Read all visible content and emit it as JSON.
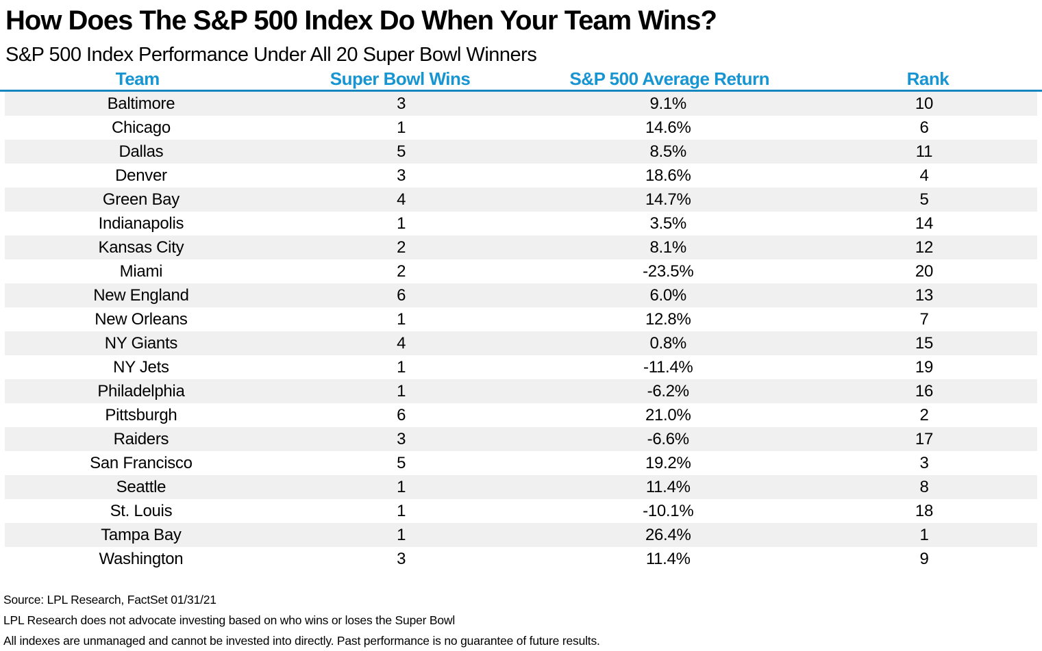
{
  "title": "How Does The S&P 500 Index Do When Your Team Wins?",
  "subtitle": "S&P 500 Index Performance Under All 20 Super Bowl Winners",
  "colors": {
    "header_text_blue": "#1795D2",
    "header_rule_blue": "#1488BE",
    "stripe_gray": "#F0F0F0",
    "text_black": "#000000"
  },
  "table": {
    "headers": [
      "Team",
      "Super Bowl Wins",
      "S&P 500 Average Return",
      "Rank"
    ],
    "rows": [
      [
        "Baltimore",
        "3",
        "9.1%",
        "10"
      ],
      [
        "Chicago",
        "1",
        "14.6%",
        "6"
      ],
      [
        "Dallas",
        "5",
        "8.5%",
        "11"
      ],
      [
        "Denver",
        "3",
        "18.6%",
        "4"
      ],
      [
        "Green Bay",
        "4",
        "14.7%",
        "5"
      ],
      [
        "Indianapolis",
        "1",
        "3.5%",
        "14"
      ],
      [
        "Kansas City",
        "2",
        "8.1%",
        "12"
      ],
      [
        "Miami",
        "2",
        "-23.5%",
        "20"
      ],
      [
        "New England",
        "6",
        "6.0%",
        "13"
      ],
      [
        "New Orleans",
        "1",
        "12.8%",
        "7"
      ],
      [
        "NY Giants",
        "4",
        "0.8%",
        "15"
      ],
      [
        "NY Jets",
        "1",
        "-11.4%",
        "19"
      ],
      [
        "Philadelphia",
        "1",
        "-6.2%",
        "16"
      ],
      [
        "Pittsburgh",
        "6",
        "21.0%",
        "2"
      ],
      [
        "Raiders",
        "3",
        "-6.6%",
        "17"
      ],
      [
        "San Francisco",
        "5",
        "19.2%",
        "3"
      ],
      [
        "Seattle",
        "1",
        "11.4%",
        "8"
      ],
      [
        "St. Louis",
        "1",
        "-10.1%",
        "18"
      ],
      [
        "Tampa Bay",
        "1",
        "26.4%",
        "1"
      ],
      [
        "Washington",
        "3",
        "11.4%",
        "9"
      ]
    ]
  },
  "chart_data": {
    "type": "table",
    "title": "How Does The S&P 500 Index Do When Your Team Wins?",
    "subtitle": "S&P 500 Index Performance Under All 20 Super Bowl Winners",
    "columns": [
      "Team",
      "Super Bowl Wins",
      "S&P 500 Average Return",
      "Rank"
    ],
    "rows": [
      {
        "team": "Baltimore",
        "super_bowl_wins": 3,
        "sp500_avg_return_pct": 9.1,
        "rank": 10
      },
      {
        "team": "Chicago",
        "super_bowl_wins": 1,
        "sp500_avg_return_pct": 14.6,
        "rank": 6
      },
      {
        "team": "Dallas",
        "super_bowl_wins": 5,
        "sp500_avg_return_pct": 8.5,
        "rank": 11
      },
      {
        "team": "Denver",
        "super_bowl_wins": 3,
        "sp500_avg_return_pct": 18.6,
        "rank": 4
      },
      {
        "team": "Green Bay",
        "super_bowl_wins": 4,
        "sp500_avg_return_pct": 14.7,
        "rank": 5
      },
      {
        "team": "Indianapolis",
        "super_bowl_wins": 1,
        "sp500_avg_return_pct": 3.5,
        "rank": 14
      },
      {
        "team": "Kansas City",
        "super_bowl_wins": 2,
        "sp500_avg_return_pct": 8.1,
        "rank": 12
      },
      {
        "team": "Miami",
        "super_bowl_wins": 2,
        "sp500_avg_return_pct": -23.5,
        "rank": 20
      },
      {
        "team": "New England",
        "super_bowl_wins": 6,
        "sp500_avg_return_pct": 6.0,
        "rank": 13
      },
      {
        "team": "New Orleans",
        "super_bowl_wins": 1,
        "sp500_avg_return_pct": 12.8,
        "rank": 7
      },
      {
        "team": "NY Giants",
        "super_bowl_wins": 4,
        "sp500_avg_return_pct": 0.8,
        "rank": 15
      },
      {
        "team": "NY Jets",
        "super_bowl_wins": 1,
        "sp500_avg_return_pct": -11.4,
        "rank": 19
      },
      {
        "team": "Philadelphia",
        "super_bowl_wins": 1,
        "sp500_avg_return_pct": -6.2,
        "rank": 16
      },
      {
        "team": "Pittsburgh",
        "super_bowl_wins": 6,
        "sp500_avg_return_pct": 21.0,
        "rank": 2
      },
      {
        "team": "Raiders",
        "super_bowl_wins": 3,
        "sp500_avg_return_pct": -6.6,
        "rank": 17
      },
      {
        "team": "San Francisco",
        "super_bowl_wins": 5,
        "sp500_avg_return_pct": 19.2,
        "rank": 3
      },
      {
        "team": "Seattle",
        "super_bowl_wins": 1,
        "sp500_avg_return_pct": 11.4,
        "rank": 8
      },
      {
        "team": "St. Louis",
        "super_bowl_wins": 1,
        "sp500_avg_return_pct": -10.1,
        "rank": 18
      },
      {
        "team": "Tampa Bay",
        "super_bowl_wins": 1,
        "sp500_avg_return_pct": 26.4,
        "rank": 1
      },
      {
        "team": "Washington",
        "super_bowl_wins": 3,
        "sp500_avg_return_pct": 11.4,
        "rank": 9
      }
    ],
    "layout": {
      "zebra_striping": true,
      "header_color": "#1795D2",
      "rows_count": 20
    }
  },
  "footer": {
    "source": "Source: LPL Research, FactSet 01/31/21",
    "disclaimer1": "LPL Research does not advocate investing based on who wins or loses the Super Bowl",
    "disclaimer2": "All indexes are unmanaged and cannot be invested into directly. Past performance is no guarantee of future results."
  }
}
